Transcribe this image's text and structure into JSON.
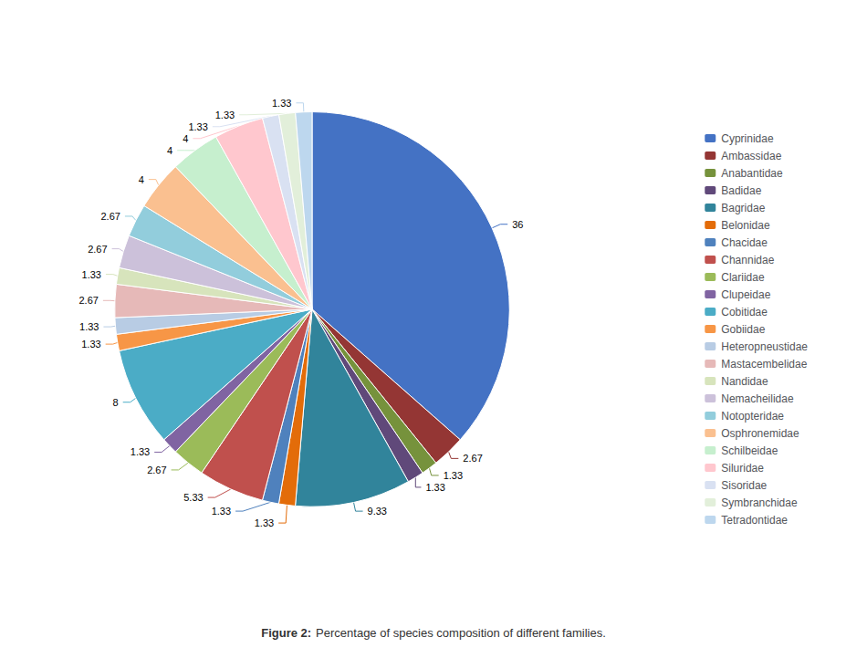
{
  "chart_data": {
    "type": "pie",
    "title": "Figure 2:",
    "subtitle": "Percentage of species composition of different families.",
    "categories": [
      "Cyprinidae",
      "Ambassidae",
      "Anabantidae",
      "Badidae",
      "Bagridae",
      "Belonidae",
      "Chacidae",
      "Channidae",
      "Clariidae",
      "Clupeidae",
      "Cobitidae",
      "Gobiidae",
      "Heteropneustidae",
      "Mastacembelidae",
      "Nandidae",
      "Nemacheilidae",
      "Notopteridae",
      "Osphronemidae",
      "Schilbeidae",
      "Siluridae",
      "Sisoridae",
      "Symbranchidae",
      "Tetradontidae"
    ],
    "values": [
      36,
      2.67,
      1.33,
      1.33,
      9.33,
      1.33,
      1.33,
      5.33,
      2.67,
      1.33,
      8,
      1.33,
      1.33,
      2.67,
      1.33,
      2.67,
      2.67,
      4,
      4,
      4,
      1.33,
      1.33,
      1.33
    ],
    "colors": [
      "#4472C4",
      "#943634",
      "#76923C",
      "#60497A",
      "#31849B",
      "#E36C09",
      "#4F81BD",
      "#C0504D",
      "#9BBB59",
      "#8064A2",
      "#4BACC6",
      "#F79646",
      "#B8CCE4",
      "#E6B9B8",
      "#D7E4BC",
      "#CCC1DA",
      "#92CDDC",
      "#FAC090",
      "#C6EFCE",
      "#FFC7CE",
      "#D9E1F2",
      "#E2EFDA",
      "#BDD7EE"
    ],
    "data_labels": true,
    "legend": "right"
  }
}
